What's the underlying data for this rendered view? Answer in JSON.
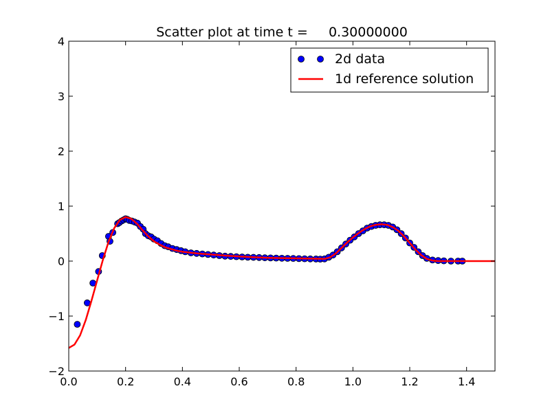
{
  "chart_data": {
    "type": "scatter",
    "title": "Scatter plot at time t =     0.30000000",
    "xlabel": "",
    "ylabel": "",
    "xlim": [
      0.0,
      1.5
    ],
    "ylim": [
      -2,
      4
    ],
    "grid": false,
    "legend_position": "top-right",
    "x_ticks": [
      {
        "value": 0.0,
        "label": "0.0"
      },
      {
        "value": 0.2,
        "label": "0.2"
      },
      {
        "value": 0.4,
        "label": "0.4"
      },
      {
        "value": 0.6,
        "label": "0.6"
      },
      {
        "value": 0.8,
        "label": "0.8"
      },
      {
        "value": 1.0,
        "label": "1.0"
      },
      {
        "value": 1.2,
        "label": "1.2"
      },
      {
        "value": 1.4,
        "label": "1.4"
      }
    ],
    "y_ticks": [
      {
        "value": -2,
        "label": "−2"
      },
      {
        "value": -1,
        "label": "−1"
      },
      {
        "value": 0,
        "label": "0"
      },
      {
        "value": 1,
        "label": "1"
      },
      {
        "value": 2,
        "label": "2"
      },
      {
        "value": 3,
        "label": "3"
      },
      {
        "value": 4,
        "label": "4"
      }
    ],
    "series": [
      {
        "name": "2d data",
        "kind": "scatter",
        "color": "#0000ff",
        "edgecolor": "#000000",
        "points": [
          [
            0.03,
            -1.15
          ],
          [
            0.065,
            -0.76
          ],
          [
            0.085,
            -0.4
          ],
          [
            0.105,
            -0.19
          ],
          [
            0.118,
            0.1
          ],
          [
            0.14,
            0.45
          ],
          [
            0.145,
            0.36
          ],
          [
            0.155,
            0.52
          ],
          [
            0.172,
            0.68
          ],
          [
            0.178,
            0.7
          ],
          [
            0.186,
            0.73
          ],
          [
            0.193,
            0.75
          ],
          [
            0.2,
            0.77
          ],
          [
            0.206,
            0.76
          ],
          [
            0.213,
            0.74
          ],
          [
            0.222,
            0.73
          ],
          [
            0.232,
            0.71
          ],
          [
            0.242,
            0.69
          ],
          [
            0.252,
            0.63
          ],
          [
            0.262,
            0.58
          ],
          [
            0.27,
            0.5
          ],
          [
            0.28,
            0.46
          ],
          [
            0.29,
            0.44
          ],
          [
            0.3,
            0.4
          ],
          [
            0.312,
            0.37
          ],
          [
            0.325,
            0.32
          ],
          [
            0.338,
            0.28
          ],
          [
            0.35,
            0.26
          ],
          [
            0.365,
            0.23
          ],
          [
            0.38,
            0.21
          ],
          [
            0.395,
            0.19
          ],
          [
            0.41,
            0.17
          ],
          [
            0.43,
            0.15
          ],
          [
            0.45,
            0.14
          ],
          [
            0.47,
            0.13
          ],
          [
            0.49,
            0.12
          ],
          [
            0.51,
            0.11
          ],
          [
            0.53,
            0.1
          ],
          [
            0.55,
            0.09
          ],
          [
            0.57,
            0.085
          ],
          [
            0.59,
            0.08
          ],
          [
            0.61,
            0.075
          ],
          [
            0.63,
            0.07
          ],
          [
            0.65,
            0.068
          ],
          [
            0.67,
            0.065
          ],
          [
            0.69,
            0.06
          ],
          [
            0.71,
            0.058
          ],
          [
            0.73,
            0.055
          ],
          [
            0.75,
            0.052
          ],
          [
            0.77,
            0.05
          ],
          [
            0.79,
            0.048
          ],
          [
            0.81,
            0.045
          ],
          [
            0.83,
            0.042
          ],
          [
            0.85,
            0.04
          ],
          [
            0.87,
            0.038
          ],
          [
            0.885,
            0.036
          ],
          [
            0.9,
            0.04
          ],
          [
            0.915,
            0.07
          ],
          [
            0.93,
            0.11
          ],
          [
            0.945,
            0.17
          ],
          [
            0.96,
            0.24
          ],
          [
            0.975,
            0.31
          ],
          [
            0.99,
            0.38
          ],
          [
            1.005,
            0.44
          ],
          [
            1.02,
            0.5
          ],
          [
            1.035,
            0.55
          ],
          [
            1.05,
            0.6
          ],
          [
            1.065,
            0.63
          ],
          [
            1.08,
            0.65
          ],
          [
            1.095,
            0.66
          ],
          [
            1.11,
            0.66
          ],
          [
            1.125,
            0.65
          ],
          [
            1.14,
            0.62
          ],
          [
            1.155,
            0.57
          ],
          [
            1.17,
            0.5
          ],
          [
            1.185,
            0.42
          ],
          [
            1.2,
            0.33
          ],
          [
            1.215,
            0.25
          ],
          [
            1.23,
            0.17
          ],
          [
            1.245,
            0.1
          ],
          [
            1.26,
            0.05
          ],
          [
            1.28,
            0.02
          ],
          [
            1.3,
            0.01
          ],
          [
            1.32,
            0.005
          ],
          [
            1.345,
            0.0
          ],
          [
            1.37,
            0.0
          ],
          [
            1.385,
            0.0
          ]
        ]
      },
      {
        "name": "1d reference solution",
        "kind": "line",
        "color": "#ff0000",
        "points": [
          [
            0.0,
            -1.58
          ],
          [
            0.02,
            -1.52
          ],
          [
            0.04,
            -1.35
          ],
          [
            0.06,
            -1.07
          ],
          [
            0.08,
            -0.72
          ],
          [
            0.1,
            -0.35
          ],
          [
            0.12,
            0.02
          ],
          [
            0.14,
            0.35
          ],
          [
            0.16,
            0.6
          ],
          [
            0.18,
            0.75
          ],
          [
            0.2,
            0.8
          ],
          [
            0.22,
            0.77
          ],
          [
            0.24,
            0.68
          ],
          [
            0.26,
            0.56
          ],
          [
            0.28,
            0.45
          ],
          [
            0.3,
            0.36
          ],
          [
            0.32,
            0.3
          ],
          [
            0.34,
            0.25
          ],
          [
            0.36,
            0.22
          ],
          [
            0.38,
            0.19
          ],
          [
            0.4,
            0.17
          ],
          [
            0.45,
            0.14
          ],
          [
            0.5,
            0.12
          ],
          [
            0.55,
            0.1
          ],
          [
            0.6,
            0.085
          ],
          [
            0.65,
            0.07
          ],
          [
            0.7,
            0.06
          ],
          [
            0.75,
            0.055
          ],
          [
            0.8,
            0.05
          ],
          [
            0.85,
            0.045
          ],
          [
            0.9,
            0.04
          ],
          [
            0.92,
            0.07
          ],
          [
            0.94,
            0.14
          ],
          [
            0.96,
            0.24
          ],
          [
            0.98,
            0.34
          ],
          [
            1.0,
            0.43
          ],
          [
            1.02,
            0.51
          ],
          [
            1.04,
            0.58
          ],
          [
            1.06,
            0.63
          ],
          [
            1.08,
            0.66
          ],
          [
            1.1,
            0.67
          ],
          [
            1.12,
            0.66
          ],
          [
            1.14,
            0.62
          ],
          [
            1.16,
            0.55
          ],
          [
            1.18,
            0.45
          ],
          [
            1.2,
            0.33
          ],
          [
            1.22,
            0.21
          ],
          [
            1.24,
            0.11
          ],
          [
            1.26,
            0.04
          ],
          [
            1.28,
            0.01
          ],
          [
            1.3,
            0.0
          ],
          [
            1.4,
            0.0
          ],
          [
            1.5,
            0.0
          ]
        ]
      }
    ]
  }
}
